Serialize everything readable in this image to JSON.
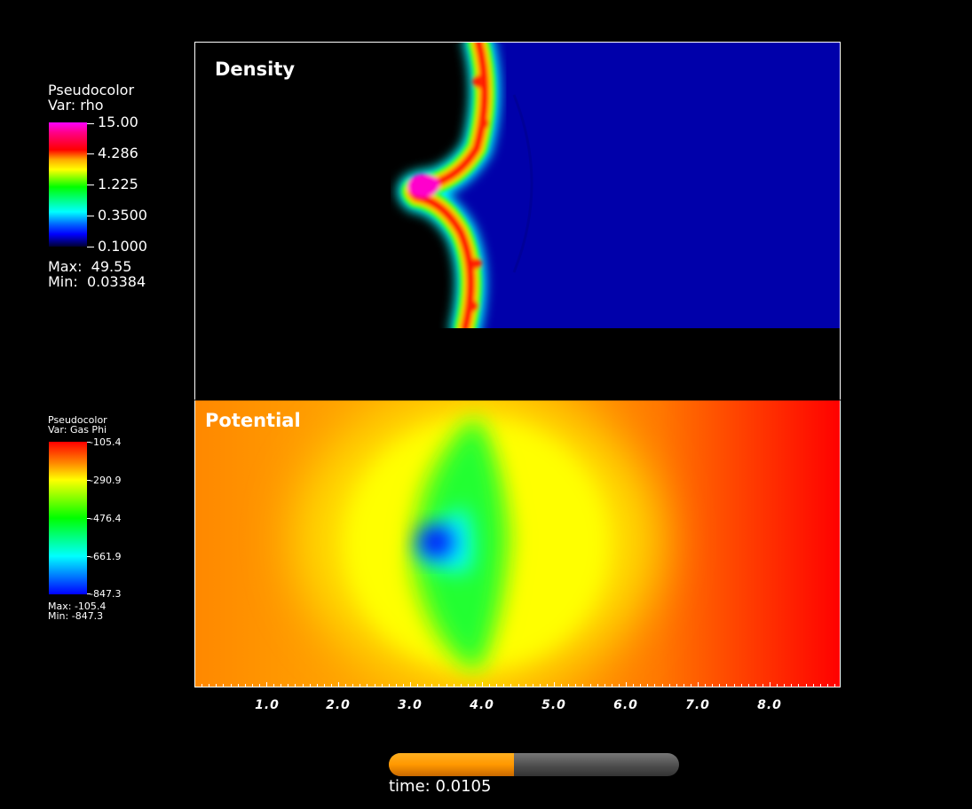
{
  "density": {
    "panel_label": "Density",
    "legend": {
      "title1": "Pseudocolor",
      "title2": "Var: rho",
      "ticks": [
        "15.00",
        "4.286",
        "1.225",
        "0.3500",
        "0.1000"
      ],
      "max": "Max:  49.55",
      "min": "Min:  0.03384"
    }
  },
  "potential": {
    "panel_label": "Potential",
    "legend": {
      "title1": "Pseudocolor",
      "title2": "Var: Gas Phi",
      "ticks": [
        "-105.4",
        "-290.9",
        "-476.4",
        "-661.9",
        "-847.3"
      ],
      "max": "Max: -105.4",
      "min": "Min: -847.3"
    }
  },
  "x_axis": {
    "labels": [
      "1.0",
      "2.0",
      "3.0",
      "4.0",
      "5.0",
      "6.0",
      "7.0",
      "8.0"
    ]
  },
  "time": {
    "label": "time: 0.0105",
    "progress": 0.43
  },
  "colors": {
    "background": "#000000",
    "density_background": "#0000aa",
    "progress_fill": "#ff9800",
    "progress_track": "#555555"
  }
}
